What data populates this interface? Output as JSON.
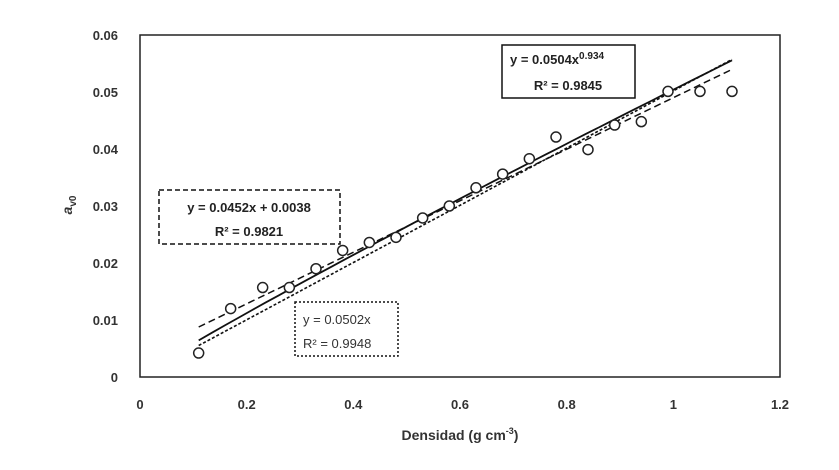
{
  "chart_data": {
    "type": "scatter",
    "xlabel": "Densidad (g cm",
    "xlabel_sup": "-3",
    "xlabel_close": ")",
    "ylabel": "a",
    "ylabel_sub": "v0",
    "xlim": [
      0,
      1.2
    ],
    "ylim": [
      0,
      0.06
    ],
    "x_ticks": [
      "0",
      "0.2",
      "0.4",
      "0.6",
      "0.8",
      "1",
      "1.2"
    ],
    "y_ticks": [
      "0",
      "0.01",
      "0.02",
      "0.03",
      "0.04",
      "0.05",
      "0.06"
    ],
    "grid": false,
    "legend": "none",
    "points": [
      {
        "x": 0.11,
        "y": 0.0042
      },
      {
        "x": 0.17,
        "y": 0.012
      },
      {
        "x": 0.23,
        "y": 0.0157
      },
      {
        "x": 0.28,
        "y": 0.0157
      },
      {
        "x": 0.33,
        "y": 0.019
      },
      {
        "x": 0.38,
        "y": 0.0222
      },
      {
        "x": 0.43,
        "y": 0.0236
      },
      {
        "x": 0.48,
        "y": 0.0245
      },
      {
        "x": 0.53,
        "y": 0.0279
      },
      {
        "x": 0.58,
        "y": 0.03
      },
      {
        "x": 0.63,
        "y": 0.0332
      },
      {
        "x": 0.68,
        "y": 0.0356
      },
      {
        "x": 0.73,
        "y": 0.0383
      },
      {
        "x": 0.78,
        "y": 0.0421
      },
      {
        "x": 0.84,
        "y": 0.0399
      },
      {
        "x": 0.89,
        "y": 0.0442
      },
      {
        "x": 0.94,
        "y": 0.0448
      },
      {
        "x": 0.99,
        "y": 0.0501
      },
      {
        "x": 1.05,
        "y": 0.0501
      },
      {
        "x": 1.11,
        "y": 0.0501
      }
    ],
    "fits": [
      {
        "kind": "power",
        "a": 0.0504,
        "b": 0.934,
        "style": "solid",
        "equation": "y = 0.0504x",
        "equation_sup": "0.934",
        "r2": "R² = 0.9845",
        "box_style": "solid"
      },
      {
        "kind": "linear",
        "a": 0.0452,
        "b": 0.0038,
        "style": "dashed",
        "equation": "y = 0.0452x + 0.0038",
        "r2": "R² = 0.9821",
        "box_style": "dashed"
      },
      {
        "kind": "proportional",
        "a": 0.0502,
        "style": "dotted",
        "equation": "y = 0.0502x",
        "r2": "R² = 0.9948",
        "box_style": "dotted"
      }
    ],
    "fit_range": [
      0.11,
      1.11
    ],
    "marker_color": "#222222",
    "line_color": "#111111"
  }
}
